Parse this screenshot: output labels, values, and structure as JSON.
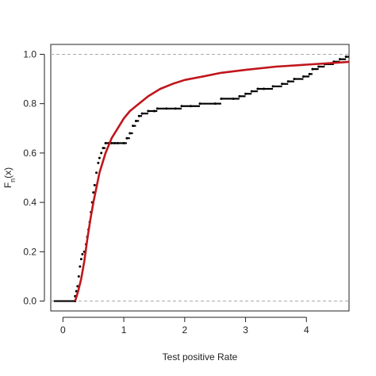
{
  "chart_data": {
    "type": "line",
    "title": "",
    "xlabel": "Test positive Rate",
    "ylabel_main": "F",
    "ylabel_sub": "n",
    "ylabel_tail": "(x)",
    "xlim": [
      -0.2,
      4.7
    ],
    "ylim": [
      -0.04,
      1.04
    ],
    "xticks": [
      0,
      1,
      2,
      3,
      4
    ],
    "xtick_labels": [
      "0",
      "1",
      "2",
      "3",
      "4"
    ],
    "yticks": [
      0.0,
      0.2,
      0.4,
      0.6,
      0.8,
      1.0
    ],
    "ytick_labels": [
      "0.0",
      "0.2",
      "0.4",
      "0.6",
      "0.8",
      "1.0"
    ],
    "reference_lines_y": [
      0.0,
      1.0
    ],
    "grid": false,
    "series": [
      {
        "kind": "empirical_cdf_steps",
        "color": "#000000",
        "points": [
          [
            -0.15,
            0.0
          ],
          [
            0.2,
            0.0
          ],
          [
            0.2,
            0.02
          ],
          [
            0.22,
            0.04
          ],
          [
            0.24,
            0.06
          ],
          [
            0.26,
            0.1
          ],
          [
            0.28,
            0.14
          ],
          [
            0.3,
            0.17
          ],
          [
            0.32,
            0.19
          ],
          [
            0.35,
            0.2
          ],
          [
            0.38,
            0.23
          ],
          [
            0.4,
            0.26
          ],
          [
            0.42,
            0.29
          ],
          [
            0.44,
            0.32
          ],
          [
            0.46,
            0.36
          ],
          [
            0.48,
            0.4
          ],
          [
            0.5,
            0.44
          ],
          [
            0.52,
            0.47
          ],
          [
            0.55,
            0.52
          ],
          [
            0.58,
            0.56
          ],
          [
            0.6,
            0.58
          ],
          [
            0.63,
            0.6
          ],
          [
            0.66,
            0.62
          ],
          [
            0.7,
            0.64
          ],
          [
            0.75,
            0.64
          ],
          [
            0.8,
            0.64
          ],
          [
            0.85,
            0.64
          ],
          [
            0.9,
            0.64
          ],
          [
            1.0,
            0.64
          ],
          [
            1.05,
            0.66
          ],
          [
            1.1,
            0.68
          ],
          [
            1.15,
            0.71
          ],
          [
            1.2,
            0.73
          ],
          [
            1.25,
            0.75
          ],
          [
            1.3,
            0.76
          ],
          [
            1.4,
            0.77
          ],
          [
            1.5,
            0.77
          ],
          [
            1.55,
            0.78
          ],
          [
            1.7,
            0.78
          ],
          [
            1.85,
            0.78
          ],
          [
            1.95,
            0.79
          ],
          [
            2.1,
            0.79
          ],
          [
            2.25,
            0.8
          ],
          [
            2.5,
            0.8
          ],
          [
            2.6,
            0.82
          ],
          [
            2.8,
            0.82
          ],
          [
            2.9,
            0.83
          ],
          [
            3.0,
            0.84
          ],
          [
            3.1,
            0.85
          ],
          [
            3.2,
            0.86
          ],
          [
            3.3,
            0.86
          ],
          [
            3.45,
            0.87
          ],
          [
            3.6,
            0.88
          ],
          [
            3.7,
            0.89
          ],
          [
            3.8,
            0.9
          ],
          [
            3.95,
            0.91
          ],
          [
            4.05,
            0.92
          ],
          [
            4.1,
            0.94
          ],
          [
            4.2,
            0.95
          ],
          [
            4.3,
            0.96
          ],
          [
            4.45,
            0.97
          ],
          [
            4.55,
            0.98
          ],
          [
            4.65,
            0.99
          ],
          [
            4.72,
            1.0
          ]
        ]
      },
      {
        "kind": "fitted_cdf_curve",
        "color": "#c0161c",
        "points": [
          [
            0.2,
            0.0
          ],
          [
            0.25,
            0.04
          ],
          [
            0.3,
            0.09
          ],
          [
            0.35,
            0.16
          ],
          [
            0.4,
            0.25
          ],
          [
            0.45,
            0.33
          ],
          [
            0.5,
            0.4
          ],
          [
            0.6,
            0.52
          ],
          [
            0.7,
            0.6
          ],
          [
            0.8,
            0.66
          ],
          [
            0.9,
            0.7
          ],
          [
            1.0,
            0.74
          ],
          [
            1.1,
            0.77
          ],
          [
            1.2,
            0.79
          ],
          [
            1.4,
            0.83
          ],
          [
            1.6,
            0.86
          ],
          [
            1.8,
            0.88
          ],
          [
            2.0,
            0.896
          ],
          [
            2.3,
            0.91
          ],
          [
            2.6,
            0.925
          ],
          [
            3.0,
            0.937
          ],
          [
            3.5,
            0.95
          ],
          [
            4.0,
            0.958
          ],
          [
            4.5,
            0.966
          ],
          [
            4.72,
            0.97
          ]
        ]
      }
    ]
  }
}
